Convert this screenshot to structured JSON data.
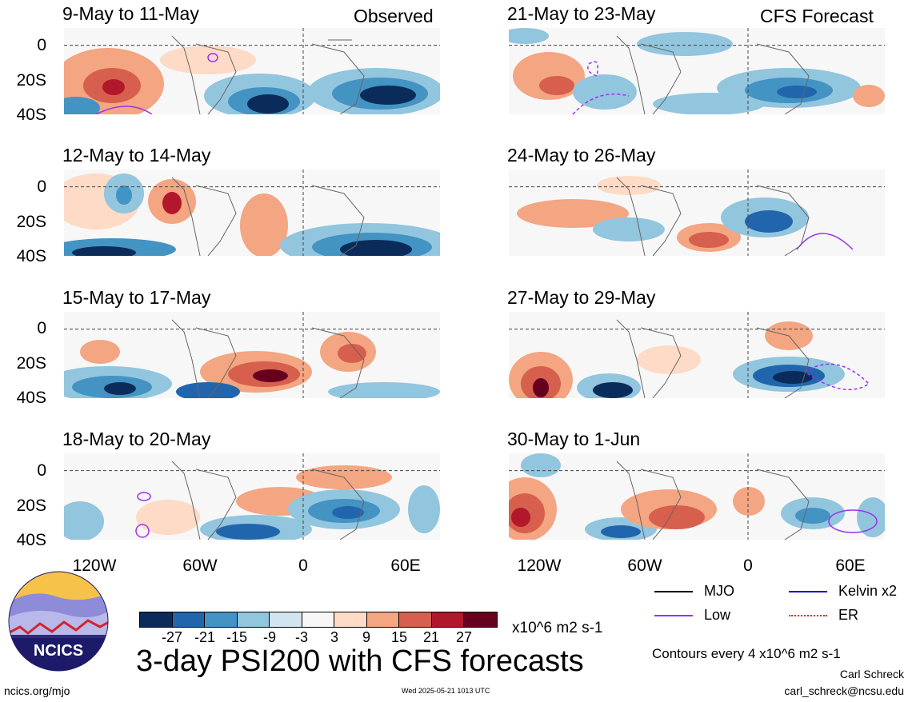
{
  "columns": {
    "left_label": "Observed",
    "right_label": "CFS Forecast"
  },
  "panels": [
    {
      "id": "p1",
      "title": "9-May to 11-May"
    },
    {
      "id": "p2",
      "title": "12-May to 14-May"
    },
    {
      "id": "p3",
      "title": "15-May to 17-May"
    },
    {
      "id": "p4",
      "title": "18-May to 20-May"
    },
    {
      "id": "p5",
      "title": "21-May to 23-May"
    },
    {
      "id": "p6",
      "title": "24-May to 26-May"
    },
    {
      "id": "p7",
      "title": "27-May to 29-May"
    },
    {
      "id": "p8",
      "title": "30-May to 1-Jun"
    }
  ],
  "lat_labels": [
    "0",
    "20S",
    "40S"
  ],
  "lon_labels": [
    "120W",
    "60W",
    "0",
    "60E"
  ],
  "colorbar": {
    "colors": [
      "#0b2c5a",
      "#2166ac",
      "#4393c3",
      "#92c5de",
      "#d1e5f0",
      "#f7f7f7",
      "#fddbc7",
      "#f4a582",
      "#d6604d",
      "#b2182b",
      "#67001f"
    ],
    "ticks": [
      "-27",
      "-21",
      "-15",
      "-9",
      "-3",
      "3",
      "9",
      "15",
      "21",
      "27"
    ],
    "units": "x10^6 m2 s-1"
  },
  "legend": {
    "items": [
      {
        "label": "MJO",
        "color": "#000000",
        "style": "solid"
      },
      {
        "label": "Kelvin x2",
        "color": "#0000cc",
        "style": "solid"
      },
      {
        "label": "Low",
        "color": "#9933ee",
        "style": "solid"
      },
      {
        "label": "ER",
        "color": "#dd2222",
        "style": "dotted"
      }
    ],
    "contours_note": "Contours every 4 x10^6 m2 s-1"
  },
  "main_title": "3-day PSI200 with CFS forecasts",
  "logo_text": "NCICS",
  "footer": {
    "url": "ncics.org/mjo",
    "timestamp": "Wed 2025-05-21 1013 UTC",
    "author": "Carl Schreck",
    "email": "carl_schreck@ncsu.edu"
  }
}
